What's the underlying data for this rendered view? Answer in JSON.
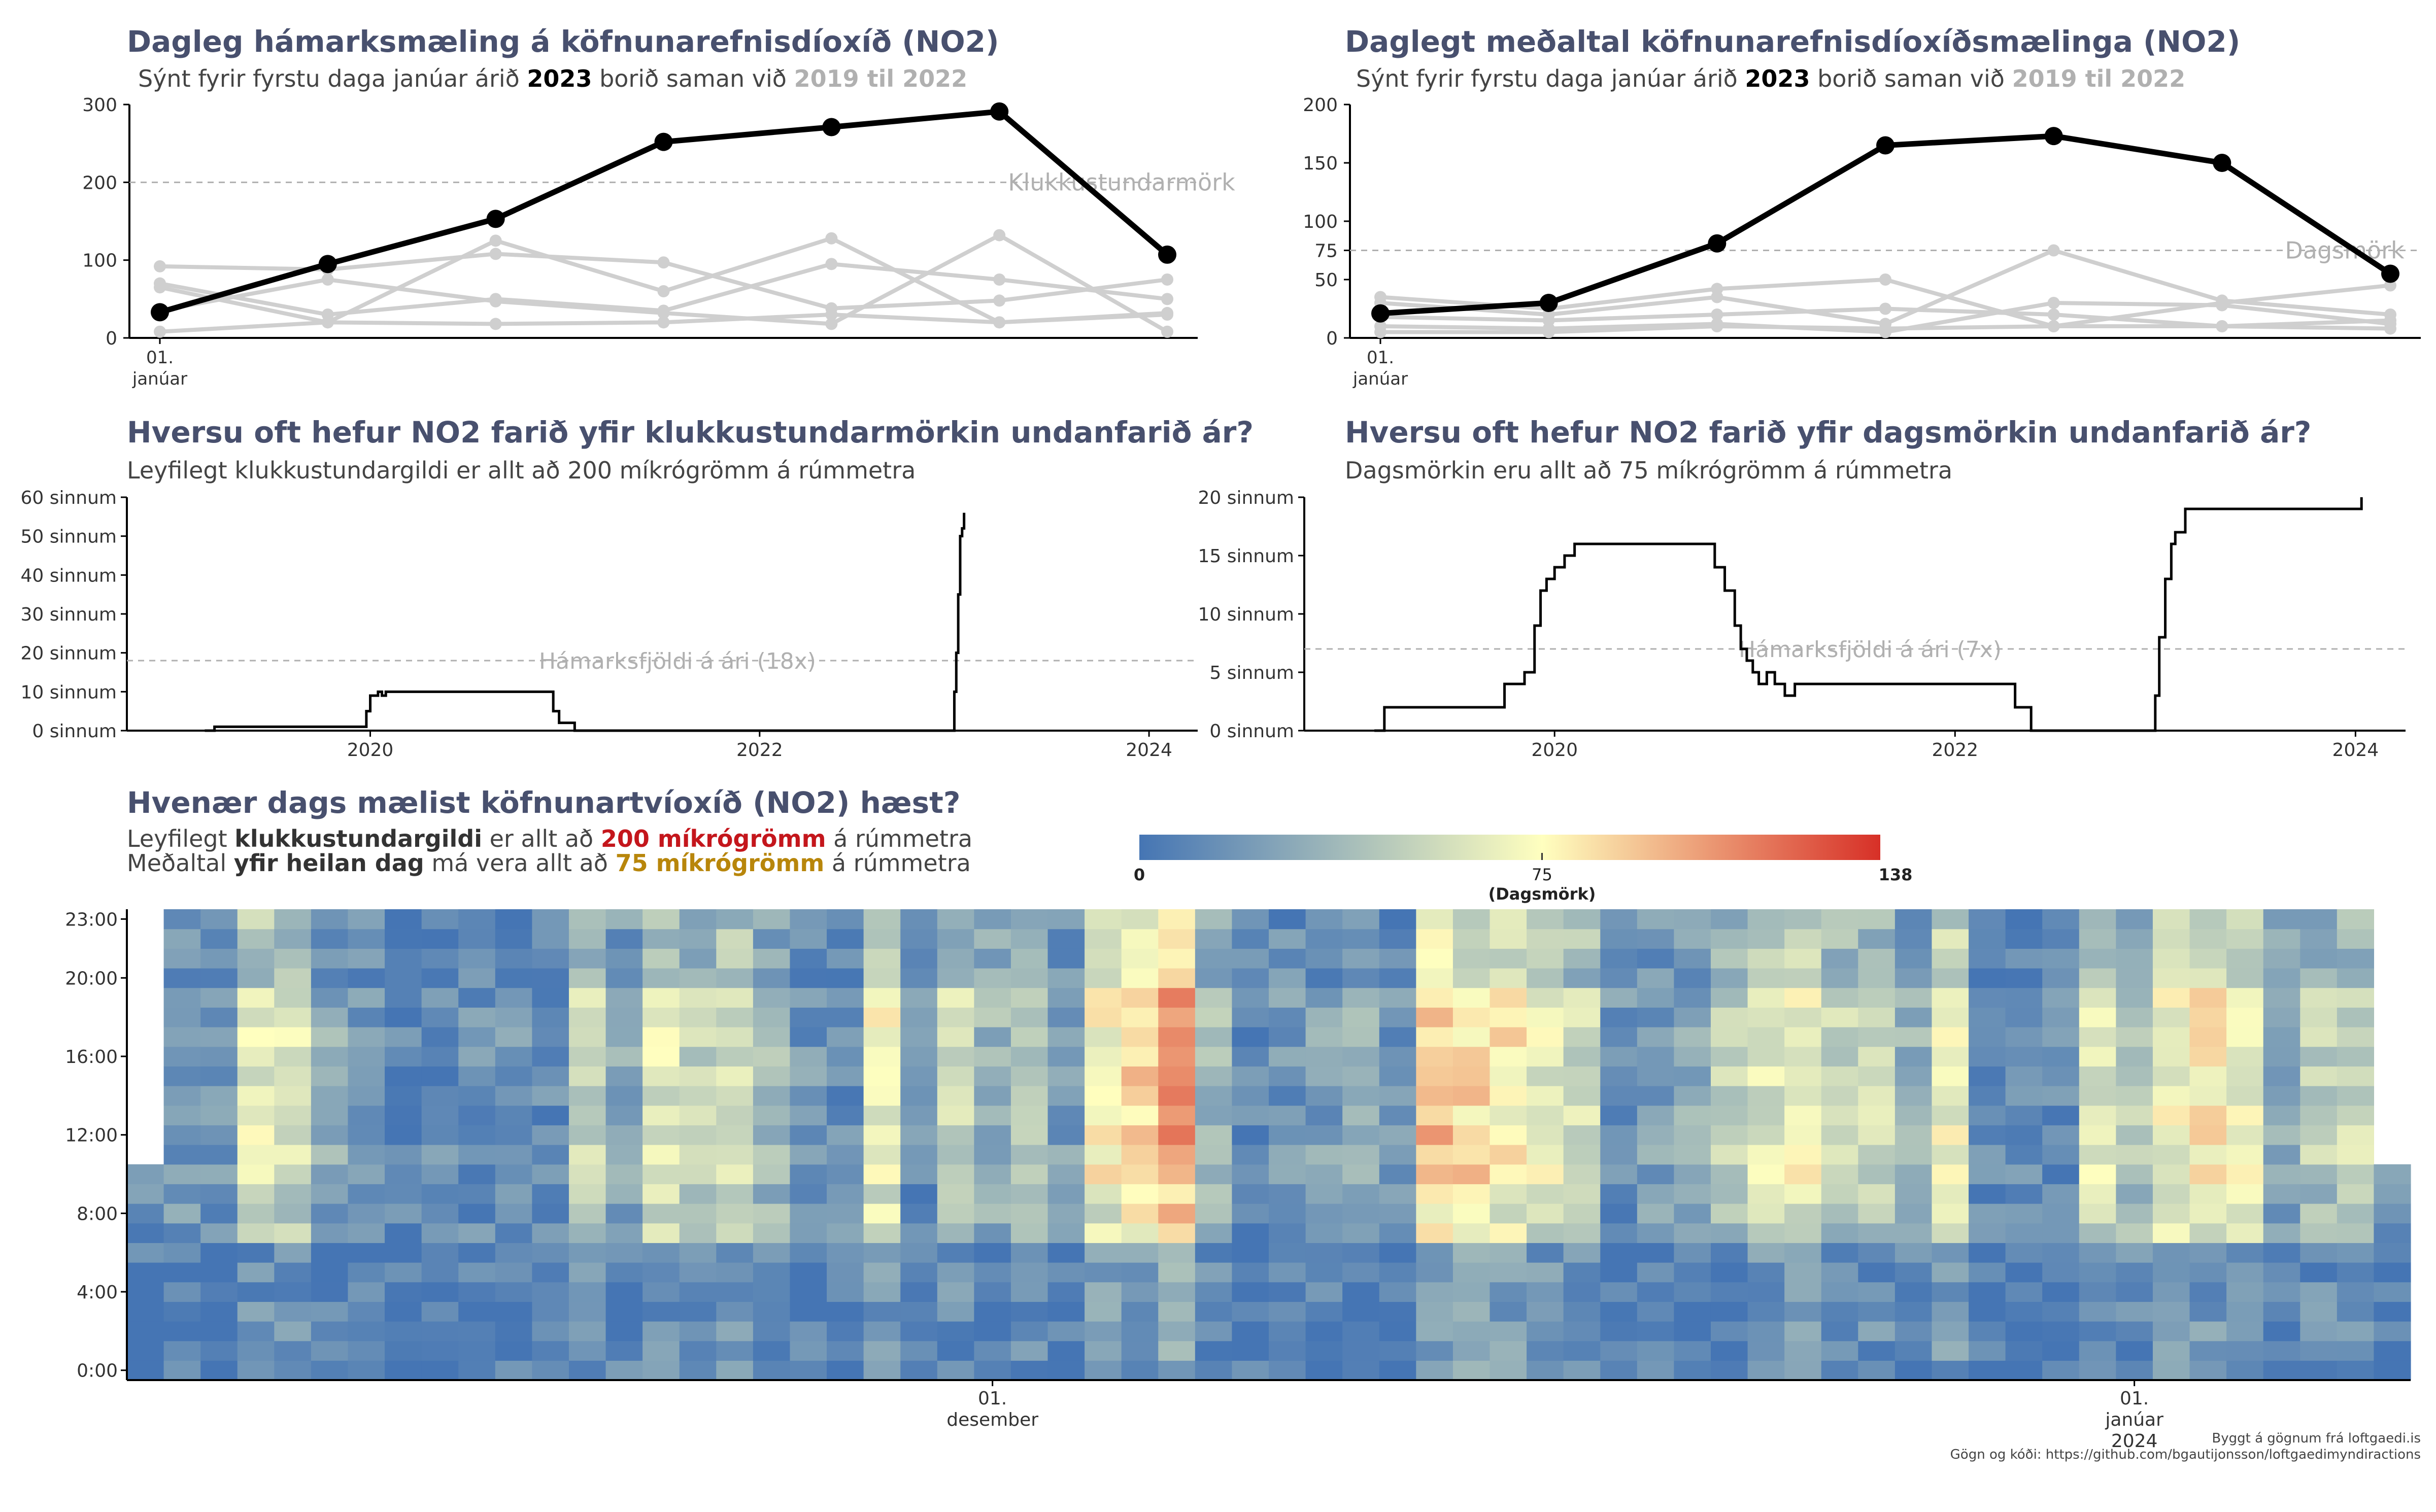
{
  "panels": {
    "p1": {
      "title": "Dagleg hámarksmæling á köfnunarefnisdíoxíð (NO2)",
      "subtitle_pre": "Sýnt fyrir fyrstu daga janúar árið ",
      "subtitle_year": "2023",
      "subtitle_mid": " borið saman við ",
      "subtitle_range": "2019 til 2022"
    },
    "p2": {
      "title": "Daglegt meðaltal köfnunarefnisdíoxíðsmælinga (NO2)",
      "subtitle_pre": "Sýnt fyrir fyrstu daga janúar árið ",
      "subtitle_year": "2023",
      "subtitle_mid": " borið saman við ",
      "subtitle_range": "2019 til 2022"
    },
    "p3": {
      "title": "Hversu oft hefur NO2 farið yfir klukkustundarmörkin undanfarið ár?",
      "subtitle": "Leyfilegt klukkustundargildi er allt að 200 míkrógrömm á rúmmetra"
    },
    "p4": {
      "title": "Hversu oft hefur NO2 farið yfir dagsmörkin undanfarið ár?",
      "subtitle": "Dagsmörkin eru allt að 75 míkrógrömm á rúmmetra"
    },
    "p5": {
      "title": "Hvenær dags mælist köfnunartvíoxíð (NO2) hæst?",
      "line1_pre": "Leyfilegt ",
      "line1_bold": "klukkustundargildi",
      "line1_mid": " er allt að ",
      "line1_val": "200 míkrógrömm",
      "line1_post": " á rúmmetra",
      "line2_pre": "Meðaltal ",
      "line2_bold": "yfir heilan dag",
      "line2_mid": " má vera allt að ",
      "line2_val": "75 míkrógrömm",
      "line2_post": "  á rúmmetra"
    }
  },
  "credits": {
    "line1": "Byggt á gögnum frá loftgaedi.is",
    "line2": "Gögn og kóði: https://github.com/bgautijonsson/loftgaedimyndiractions"
  },
  "colors": {
    "title": "#48506e",
    "highlight_line": "#000000",
    "history_line": "#cfcfcf",
    "threshold": "#b0b0b0",
    "scale_low": "#4575b4",
    "scale_mid": "#ffffbf",
    "scale_high": "#d73027"
  },
  "chart_data": [
    {
      "type": "line",
      "title": "Dagleg hámarksmæling á köfnunarefnisdíoxíð (NO2)",
      "x_tick_label": "01. janúar",
      "ylim": [
        0,
        300
      ],
      "yticks": [
        "0",
        "100",
        "200",
        "300"
      ],
      "threshold": {
        "value": 200,
        "label": "Klukkustundarmörk"
      },
      "x": [
        1,
        2,
        3,
        4,
        5,
        6,
        7
      ],
      "series": [
        {
          "name": "2023",
          "values": [
            33,
            95,
            153,
            252,
            271,
            291,
            107
          ]
        },
        {
          "values": [
            92,
            88,
            108,
            97,
            38,
            48,
            75
          ]
        },
        {
          "values": [
            70,
            30,
            50,
            35,
            95,
            75,
            50
          ]
        },
        {
          "values": [
            65,
            20,
            125,
            60,
            128,
            20,
            32
          ]
        },
        {
          "values": [
            35,
            75,
            47,
            32,
            18,
            132,
            8
          ]
        },
        {
          "values": [
            8,
            20,
            18,
            20,
            30,
            20,
            30
          ]
        }
      ]
    },
    {
      "type": "line",
      "title": "Daglegt meðaltal köfnunarefnisdíoxíðsmælinga (NO2)",
      "x_tick_label": "01. janúar",
      "ylim": [
        0,
        200
      ],
      "yticks": [
        "0",
        "50",
        "75",
        "100",
        "150",
        "200"
      ],
      "threshold": {
        "value": 75,
        "label": "Dagsmörk"
      },
      "x": [
        1,
        2,
        3,
        4,
        5,
        6,
        7
      ],
      "series": [
        {
          "name": "2023",
          "values": [
            21,
            30,
            81,
            165,
            173,
            150,
            55
          ]
        },
        {
          "values": [
            35,
            25,
            42,
            50,
            10,
            30,
            45
          ]
        },
        {
          "values": [
            30,
            20,
            35,
            12,
            75,
            32,
            20
          ]
        },
        {
          "values": [
            18,
            15,
            20,
            25,
            20,
            10,
            15
          ]
        },
        {
          "values": [
            10,
            8,
            12,
            5,
            30,
            28,
            12
          ]
        },
        {
          "values": [
            5,
            5,
            10,
            8,
            10,
            10,
            8
          ]
        }
      ]
    },
    {
      "type": "line",
      "step": true,
      "title": "Hversu oft hefur NO2 farið yfir klukkustundarmörkin undanfarið ár?",
      "xlim": [
        2018.75,
        2024.25
      ],
      "xticks": [
        "2020",
        "2022",
        "2024"
      ],
      "ylim": [
        0,
        60
      ],
      "yticks": [
        "0 sinnum",
        "10 sinnum",
        "20 sinnum",
        "30 sinnum",
        "40 sinnum",
        "50 sinnum",
        "60 sinnum"
      ],
      "threshold": {
        "value": 18,
        "label": "Hámarksfjöldi á ári (18x)"
      },
      "x": [
        2019.15,
        2019.2,
        2019.96,
        2019.98,
        2020.0,
        2020.04,
        2020.06,
        2020.08,
        2020.12,
        2020.9,
        2020.94,
        2020.97,
        2021.05,
        2022.99,
        2023.0,
        2023.01,
        2023.02,
        2023.03,
        2023.04,
        2023.05
      ],
      "y": [
        0,
        1,
        1,
        5,
        9,
        10,
        9,
        10,
        10,
        10,
        5,
        2,
        0,
        0,
        10,
        20,
        35,
        50,
        52,
        56
      ]
    },
    {
      "type": "line",
      "step": true,
      "title": "Hversu oft hefur NO2 farið yfir dagsmörkin undanfarið ár?",
      "xlim": [
        2018.75,
        2024.25
      ],
      "xticks": [
        "2020",
        "2022",
        "2024"
      ],
      "ylim": [
        0,
        20
      ],
      "yticks": [
        "0 sinnum",
        "5 sinnum",
        "10 sinnum",
        "15 sinnum",
        "20 sinnum"
      ],
      "threshold": {
        "value": 7,
        "label": "Hámarksfjöldi á ári (7x)"
      },
      "x": [
        2019.1,
        2019.15,
        2019.72,
        2019.75,
        2019.85,
        2019.9,
        2019.93,
        2019.96,
        2020.0,
        2020.05,
        2020.1,
        2020.15,
        2020.25,
        2020.8,
        2020.85,
        2020.9,
        2020.93,
        2020.96,
        2020.99,
        2021.02,
        2021.06,
        2021.1,
        2021.15,
        2021.2,
        2022.25,
        2022.3,
        2022.38,
        2022.98,
        2023.0,
        2023.02,
        2023.05,
        2023.08,
        2023.1,
        2023.15,
        2023.99,
        2024.03
      ],
      "y": [
        0,
        2,
        2,
        4,
        5,
        9,
        12,
        13,
        14,
        15,
        16,
        16,
        16,
        14,
        12,
        9,
        7,
        6,
        5,
        4,
        5,
        4,
        3,
        4,
        4,
        2,
        0,
        0,
        3,
        8,
        13,
        16,
        17,
        19,
        19,
        20
      ]
    },
    {
      "type": "heatmap",
      "title": "Hvenær dags mælist köfnunartvíoxíð (NO2) hæst?",
      "y_labels": [
        "0:00",
        "4:00",
        "8:00",
        "12:00",
        "16:00",
        "20:00",
        "23:00"
      ],
      "x_labels": [
        {
          "text": "01.",
          "sub": "desember"
        },
        {
          "text": "01.",
          "sub": "janúar",
          "year": "2024"
        }
      ],
      "colorbar": {
        "min": 0,
        "mid": 75,
        "max": 138,
        "mid_label": "(Dagsmörk)"
      },
      "days": 62,
      "day_levels": [
        10,
        14,
        10,
        40,
        38,
        18,
        12,
        8,
        8,
        10,
        12,
        8,
        35,
        18,
        40,
        30,
        38,
        25,
        12,
        10,
        45,
        10,
        35,
        22,
        30,
        14,
        48,
        56,
        70,
        25,
        8,
        12,
        15,
        20,
        10,
        60,
        55,
        50,
        42,
        35,
        12,
        15,
        18,
        30,
        40,
        45,
        32,
        35,
        22,
        45,
        10,
        8,
        8,
        40,
        30,
        45,
        50,
        45,
        20,
        30,
        35,
        10
      ]
    }
  ]
}
